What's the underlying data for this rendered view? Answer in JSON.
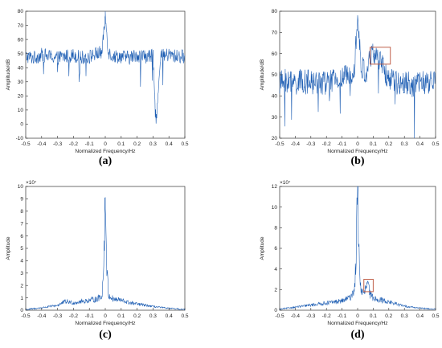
{
  "colors": {
    "signal": "#1f5fb4",
    "highlight": "#c0604a",
    "axis": "#333333",
    "tick_text": "#222222",
    "reference_tick": "#c03030"
  },
  "chart_data": [
    {
      "id": "a",
      "type": "line",
      "panel_label": "(a)",
      "xlabel": "Normalized Frequency/Hz",
      "ylabel": "Amplitude/dB",
      "y_exponent": "",
      "xlim": [
        -0.5,
        0.5
      ],
      "ylim": [
        -10,
        80
      ],
      "xticks": [
        "-0.5",
        "-0.4",
        "-0.3",
        "-0.2",
        "-0.1",
        "0",
        "0.1",
        "0.2",
        "0.3",
        "0.4",
        "0.5"
      ],
      "yticks": [
        "-10",
        "0",
        "10",
        "20",
        "30",
        "40",
        "50",
        "60",
        "70",
        "80"
      ],
      "series": [
        {
          "x": [
            -0.5,
            -0.45,
            -0.4,
            -0.35,
            -0.3,
            -0.25,
            -0.2,
            -0.15,
            -0.1,
            -0.05,
            -0.02,
            0,
            0.02,
            0.05,
            0.1,
            0.15,
            0.2,
            0.25,
            0.3,
            0.32,
            0.35,
            0.4,
            0.45,
            0.5
          ],
          "values": [
            48,
            47,
            49,
            48,
            47,
            48,
            49,
            47,
            48,
            50,
            51,
            77,
            51,
            48,
            48,
            47,
            49,
            48,
            48,
            3,
            48,
            49,
            48,
            48
          ]
        }
      ],
      "highlight_box": null
    },
    {
      "id": "b",
      "type": "line",
      "panel_label": "(b)",
      "xlabel": "Normalized Frequency/Hz",
      "ylabel": "Amplitude/dB",
      "y_exponent": "",
      "xlim": [
        -0.5,
        0.5
      ],
      "ylim": [
        20,
        80
      ],
      "xticks": [
        "-0.5",
        "-0.4",
        "-0.3",
        "-0.2",
        "-0.1",
        "0",
        "0.1",
        "0.2",
        "0.3",
        "0.4",
        "0.5"
      ],
      "yticks": [
        "20",
        "30",
        "40",
        "50",
        "60",
        "70",
        "80"
      ],
      "series": [
        {
          "x": [
            -0.5,
            -0.45,
            -0.4,
            -0.35,
            -0.3,
            -0.25,
            -0.2,
            -0.15,
            -0.1,
            -0.05,
            -0.02,
            0,
            0.02,
            0.05,
            0.08,
            0.1,
            0.12,
            0.15,
            0.2,
            0.25,
            0.3,
            0.35,
            0.4,
            0.45,
            0.5
          ],
          "values": [
            46,
            47,
            46,
            47,
            46,
            47,
            46,
            47,
            48,
            50,
            55,
            78,
            55,
            50,
            58,
            60,
            59,
            55,
            48,
            46,
            47,
            45,
            46,
            46,
            47
          ]
        }
      ],
      "highlight_box": {
        "x": [
          0.08,
          0.21
        ],
        "y": [
          55,
          63
        ]
      }
    },
    {
      "id": "c",
      "type": "line",
      "panel_label": "(c)",
      "xlabel": "Normalized Frequency/Hz",
      "ylabel": "Amplitude",
      "y_exponent": "×10⁷",
      "xlim": [
        -0.5,
        0.5
      ],
      "ylim": [
        0,
        10
      ],
      "xticks": [
        "-0.5",
        "-0.4",
        "-0.3",
        "-0.2",
        "-0.1",
        "0",
        "0.1",
        "0.2",
        "0.3",
        "0.4",
        "0.5"
      ],
      "yticks": [
        "0",
        "1",
        "2",
        "3",
        "4",
        "5",
        "6",
        "7",
        "8",
        "9",
        "10"
      ],
      "series": [
        {
          "x": [
            -0.5,
            -0.4,
            -0.3,
            -0.25,
            -0.2,
            -0.15,
            -0.1,
            -0.05,
            -0.02,
            -0.01,
            0,
            0.01,
            0.02,
            0.05,
            0.1,
            0.15,
            0.2,
            0.3,
            0.4,
            0.5
          ],
          "values": [
            0.05,
            0.2,
            0.4,
            0.7,
            0.6,
            0.7,
            0.8,
            0.9,
            1.2,
            3.5,
            9.1,
            3.5,
            1.2,
            0.9,
            0.8,
            0.6,
            0.5,
            0.3,
            0.15,
            0.05
          ]
        }
      ],
      "highlight_box": null
    },
    {
      "id": "d",
      "type": "line",
      "panel_label": "(d)",
      "xlabel": "Normalized Frequency/Hz",
      "ylabel": "Amplitude",
      "y_exponent": "×10⁷",
      "xlim": [
        -0.5,
        0.5
      ],
      "ylim": [
        0,
        12
      ],
      "xticks": [
        "-0.5",
        "-0.4",
        "-0.3",
        "-0.2",
        "-0.1",
        "0",
        "0.1",
        "0.2",
        "0.3",
        "0.4",
        "0.5"
      ],
      "yticks": [
        "0",
        "2",
        "4",
        "6",
        "8",
        "10",
        "12"
      ],
      "series": [
        {
          "x": [
            -0.5,
            -0.4,
            -0.3,
            -0.2,
            -0.1,
            -0.05,
            -0.02,
            -0.01,
            0,
            0.01,
            0.02,
            0.04,
            0.06,
            0.07,
            0.08,
            0.1,
            0.15,
            0.2,
            0.3,
            0.4,
            0.5
          ],
          "values": [
            0.1,
            0.3,
            0.5,
            0.7,
            0.9,
            1.2,
            2.0,
            5.0,
            11.9,
            5.0,
            2.0,
            1.5,
            2.5,
            2.3,
            1.5,
            1.2,
            1.0,
            0.8,
            0.4,
            0.2,
            0.1
          ]
        }
      ],
      "highlight_box": {
        "x": [
          0.04,
          0.1
        ],
        "y": [
          1.8,
          3.0
        ]
      }
    }
  ]
}
